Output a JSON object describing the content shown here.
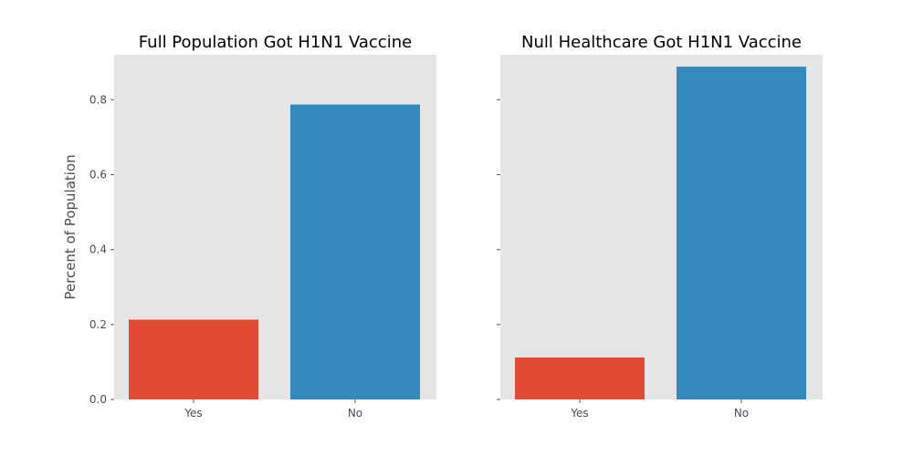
{
  "chart_data": [
    {
      "type": "bar",
      "title": "Full Population Got H1N1 Vaccine",
      "xlabel": "",
      "ylabel": "Percent of Population",
      "categories": [
        "Yes",
        "No"
      ],
      "values": [
        0.213,
        0.787
      ],
      "bar_colors": [
        "#E24A33",
        "#348ABD"
      ],
      "ylim": [
        0,
        0.92
      ],
      "yticks": [
        "0.0",
        "0.2",
        "0.4",
        "0.6",
        "0.8"
      ],
      "show_ytick_labels": true,
      "grid": false
    },
    {
      "type": "bar",
      "title": "Null Healthcare Got H1N1 Vaccine",
      "xlabel": "",
      "ylabel": "",
      "categories": [
        "Yes",
        "No"
      ],
      "values": [
        0.112,
        0.888
      ],
      "bar_colors": [
        "#E24A33",
        "#348ABD"
      ],
      "ylim": [
        0,
        0.92
      ],
      "yticks": [
        "0.0",
        "0.2",
        "0.4",
        "0.6",
        "0.8"
      ],
      "show_ytick_labels": false,
      "grid": false
    }
  ],
  "colors": {
    "plot_background": "#E5E5E5",
    "tick_color": "#555555"
  }
}
